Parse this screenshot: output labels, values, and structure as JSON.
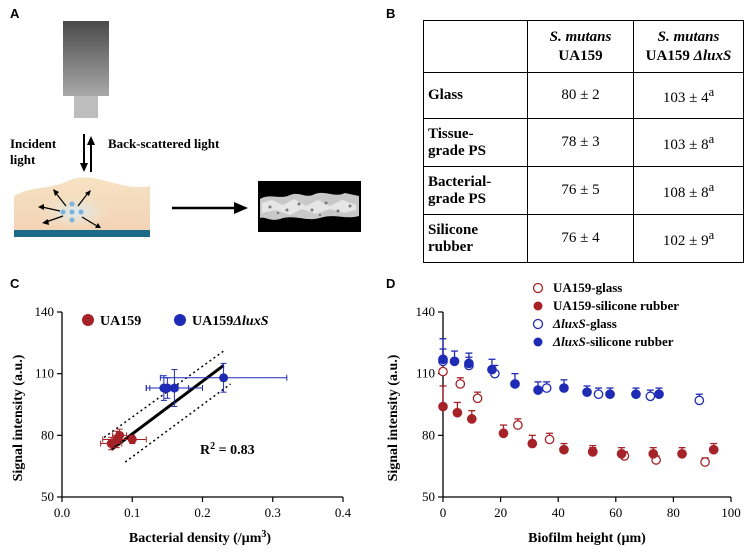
{
  "panels": {
    "a": "A",
    "b": "B",
    "c": "C",
    "d": "D"
  },
  "schematic": {
    "incident_line1": "Incident",
    "incident_line2": "light",
    "backscatter": "Back-scattered light"
  },
  "table": {
    "col1_line1": "S. mutans",
    "col1_line2": "UA159",
    "col2_line1": "S. mutans",
    "col2_line2_a": "UA159 ",
    "col2_line2_b": "ΔluxS",
    "rows": [
      {
        "label_lines": [
          "Glass"
        ],
        "v1": "80 ± 2",
        "v2": "103 ± 4",
        "sup": "a"
      },
      {
        "label_lines": [
          "Tissue-",
          "grade PS"
        ],
        "v1": "78 ± 3",
        "v2": "103 ± 8",
        "sup": "a"
      },
      {
        "label_lines": [
          "Bacterial-",
          "grade PS"
        ],
        "v1": "76 ± 5",
        "v2": "108 ± 8",
        "sup": "a"
      },
      {
        "label_lines": [
          "Silicone",
          "rubber"
        ],
        "v1": "76 ± 4",
        "v2": "102 ± 9",
        "sup": "a"
      }
    ]
  },
  "colors": {
    "red": "#a52328",
    "blue": "#1f2bb4"
  },
  "chart_data": [
    {
      "type": "scatter",
      "xlabel": "Bacterial density (/µm",
      "xlabel_sup": "3",
      "xlabel_end": ")",
      "ylabel": "Signal intensity (a.u.)",
      "xlim": [
        0,
        0.4
      ],
      "ylim": [
        50,
        140
      ],
      "xticks": [
        "0.0",
        "0.1",
        "0.2",
        "0.3",
        "0.4"
      ],
      "yticks": [
        "50",
        "80",
        "110",
        "140"
      ],
      "legend": [
        "UA159",
        "UA159",
        "ΔluxS"
      ],
      "annotation": {
        "r2_prefix": "R",
        "r2_sup": "2",
        "r2_suffix": " = 0.83"
      },
      "series": [
        {
          "name": "UA159",
          "points": [
            [
              0.07,
              76,
              0.015,
              3
            ],
            [
              0.078,
              78,
              0.02,
              4
            ],
            [
              0.082,
              80,
              0.01,
              3
            ],
            [
              0.1,
              78,
              0.02,
              2
            ]
          ]
        },
        {
          "name": "UA159ΔluxS",
          "points": [
            [
              0.145,
              103,
              0.02,
              6
            ],
            [
              0.15,
              103,
              0.03,
              5
            ],
            [
              0.16,
              103,
              0.04,
              9
            ],
            [
              0.23,
              108,
              0.09,
              7
            ]
          ]
        }
      ],
      "fit": {
        "x": [
          0.07,
          0.23
        ],
        "y": [
          73,
          114
        ]
      },
      "ci_upper": {
        "x": [
          0.06,
          0.23
        ],
        "y": [
          79,
          121
        ]
      },
      "ci_lower": {
        "x": [
          0.09,
          0.24
        ],
        "y": [
          67,
          105
        ]
      }
    },
    {
      "type": "scatter",
      "xlabel": "Biofilm height (µm)",
      "ylabel": "Signal intensity (a.u.)",
      "xlim": [
        0,
        100
      ],
      "ylim": [
        50,
        140
      ],
      "xticks": [
        "0",
        "20",
        "40",
        "60",
        "80",
        "100"
      ],
      "yticks": [
        "50",
        "80",
        "110",
        "140"
      ],
      "legend": [
        "UA159-glass",
        "UA159-silicone rubber",
        "ΔluxS",
        "-glass",
        "ΔluxS",
        "-silicone rubber"
      ],
      "series": [
        {
          "name": "UA159-glass",
          "color": "red",
          "filled": false,
          "points": [
            [
              0,
              111,
              5
            ],
            [
              6,
              105,
              3
            ],
            [
              12,
              98,
              3
            ],
            [
              26,
              85,
              3
            ],
            [
              37,
              78,
              3
            ],
            [
              52,
              72,
              2
            ],
            [
              63,
              70,
              2
            ],
            [
              74,
              68,
              2
            ],
            [
              91,
              67,
              2
            ]
          ]
        },
        {
          "name": "UA159-silicone rubber",
          "color": "red",
          "filled": true,
          "points": [
            [
              0,
              94,
              10
            ],
            [
              5,
              91,
              5
            ],
            [
              10,
              88,
              4
            ],
            [
              21,
              81,
              4
            ],
            [
              31,
              76,
              4
            ],
            [
              42,
              73,
              3
            ],
            [
              52,
              72,
              3
            ],
            [
              62,
              71,
              3
            ],
            [
              73,
              71,
              3
            ],
            [
              83,
              71,
              3
            ],
            [
              94,
              73,
              3
            ]
          ]
        },
        {
          "name": "ΔluxS-glass",
          "color": "blue",
          "filled": false,
          "points": [
            [
              0,
              116,
              6
            ],
            [
              9,
              114,
              4
            ],
            [
              18,
              110,
              4
            ],
            [
              36,
              103,
              3
            ],
            [
              54,
              100,
              3
            ],
            [
              72,
              99,
              3
            ],
            [
              89,
              97,
              3
            ]
          ]
        },
        {
          "name": "ΔluxS-silicone rubber",
          "color": "blue",
          "filled": true,
          "points": [
            [
              0,
              117,
              10
            ],
            [
              4,
              116,
              5
            ],
            [
              9,
              115,
              5
            ],
            [
              17,
              112,
              5
            ],
            [
              25,
              105,
              5
            ],
            [
              33,
              102,
              4
            ],
            [
              42,
              103,
              4
            ],
            [
              50,
              101,
              3
            ],
            [
              58,
              100,
              3
            ],
            [
              67,
              100,
              3
            ],
            [
              75,
              100,
              3
            ]
          ]
        }
      ]
    }
  ]
}
